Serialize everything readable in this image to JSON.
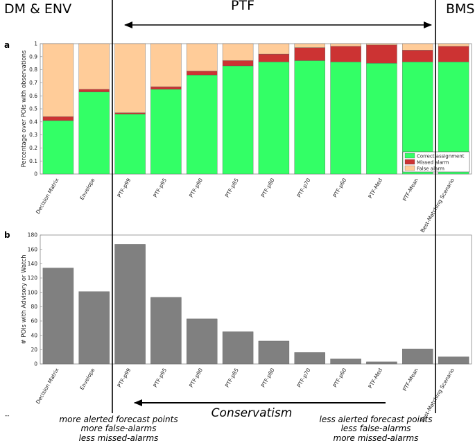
{
  "sections": {
    "left": "DM & ENV",
    "middle": "PTF",
    "right": "BMS"
  },
  "panel_letters": {
    "a": "a",
    "b": "b"
  },
  "colors": {
    "correct": "#33ff66",
    "missed": "#cc3333",
    "false_alarm": "#ffcc99",
    "bar_b": "#808080",
    "axis": "#888888",
    "grid_bg": "#ffffff"
  },
  "chart_data": [
    {
      "type": "bar",
      "stacked": true,
      "panel": "a",
      "title": "",
      "categories": [
        "Decision Matrix",
        "Envelope",
        "PTF-p99",
        "PTF-p95",
        "PTF-p90",
        "PTF-p85",
        "PTF-p80",
        "PTF-p70",
        "PTF-p60",
        "PTF-Med",
        "PTF-Mean",
        "Best-Matching Scenario"
      ],
      "series": [
        {
          "name": "Correct assignment",
          "color_key": "correct",
          "values": [
            0.41,
            0.63,
            0.46,
            0.65,
            0.76,
            0.83,
            0.86,
            0.87,
            0.86,
            0.85,
            0.86,
            0.86
          ]
        },
        {
          "name": "Missed alarm",
          "color_key": "missed",
          "values": [
            0.03,
            0.02,
            0.01,
            0.02,
            0.03,
            0.04,
            0.06,
            0.1,
            0.12,
            0.14,
            0.09,
            0.12
          ]
        },
        {
          "name": "False alarm",
          "color_key": "false_alarm",
          "values": [
            0.56,
            0.35,
            0.53,
            0.33,
            0.21,
            0.13,
            0.08,
            0.03,
            0.02,
            0.01,
            0.05,
            0.02
          ]
        }
      ],
      "ylabel": "Percentage over POIs with observations",
      "ylim": [
        0,
        1
      ],
      "yticks": [
        "0",
        "0.1",
        "0.2",
        "0.3",
        "0.4",
        "0.5",
        "0.6",
        "0.7",
        "0.8",
        "0.9",
        "1"
      ],
      "legend": [
        "Correct assignment",
        "Missed alarm",
        "False alarm"
      ],
      "legend_position": "bottom-right"
    },
    {
      "type": "bar",
      "panel": "b",
      "title": "",
      "categories": [
        "Decision Matrix",
        "Envelope",
        "PTF-p99",
        "PTF-p95",
        "PTF-p90",
        "PTF-p85",
        "PTF-p80",
        "PTF-p70",
        "PTF-p60",
        "PTF-Med",
        "PTF-Mean",
        "Best-Matching Scenario"
      ],
      "values": [
        134,
        101,
        167,
        93,
        63,
        45,
        32,
        16,
        7,
        3,
        21,
        10
      ],
      "ylabel": "# POIs with Advisory or Watch",
      "ylim": [
        0,
        180
      ],
      "yticks": [
        "0",
        "20",
        "40",
        "60",
        "80",
        "100",
        "120",
        "140",
        "160",
        "180"
      ]
    }
  ],
  "annotations": {
    "conservatism": "Conservatism",
    "left_note": [
      "more alerted forecast points",
      "more false-alarms",
      "less missed-alarms"
    ],
    "right_note": [
      "less alerted forecast points",
      "less false-alarms",
      "more missed-alarms"
    ],
    "dash": "--"
  }
}
